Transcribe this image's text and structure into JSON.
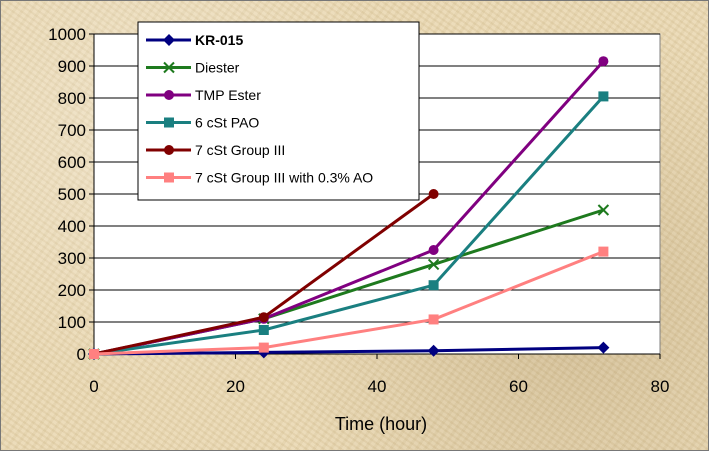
{
  "chart_data": {
    "type": "line",
    "title": "",
    "xlabel": "Time (hour)",
    "ylabel": "",
    "xlim": [
      0,
      80
    ],
    "ylim": [
      0,
      1000
    ],
    "xticks": [
      "0",
      "20",
      "40",
      "60",
      "80"
    ],
    "yticks": [
      "0",
      "100",
      "200",
      "300",
      "400",
      "500",
      "600",
      "700",
      "800",
      "900",
      "1000"
    ],
    "grid": "horizontal",
    "legend_position": "top-left",
    "series": [
      {
        "name": "KR-015",
        "color": "#000080",
        "marker": "diamond",
        "bold": true,
        "points": [
          [
            0,
            0
          ],
          [
            24,
            5
          ],
          [
            48,
            10
          ],
          [
            72,
            20
          ]
        ]
      },
      {
        "name": "Diester",
        "color": "#1e7a1e",
        "marker": "x",
        "points": [
          [
            0,
            0
          ],
          [
            24,
            110
          ],
          [
            48,
            280
          ],
          [
            72,
            450
          ]
        ]
      },
      {
        "name": "TMP Ester",
        "color": "#800080",
        "marker": "circle",
        "points": [
          [
            0,
            0
          ],
          [
            24,
            110
          ],
          [
            48,
            325
          ],
          [
            72,
            915
          ]
        ]
      },
      {
        "name": "6 cSt PAO",
        "color": "#1a7f80",
        "marker": "square",
        "points": [
          [
            0,
            0
          ],
          [
            24,
            75
          ],
          [
            48,
            215
          ],
          [
            72,
            805
          ]
        ]
      },
      {
        "name": "7 cSt Group III",
        "color": "#800000",
        "marker": "circle",
        "points": [
          [
            0,
            0
          ],
          [
            24,
            115
          ],
          [
            48,
            500
          ]
        ]
      },
      {
        "name": "7 cSt Group III with 0.3% AO",
        "color": "#ff8080",
        "marker": "square",
        "points": [
          [
            0,
            0
          ],
          [
            24,
            20
          ],
          [
            48,
            108
          ],
          [
            72,
            320
          ]
        ]
      }
    ]
  }
}
